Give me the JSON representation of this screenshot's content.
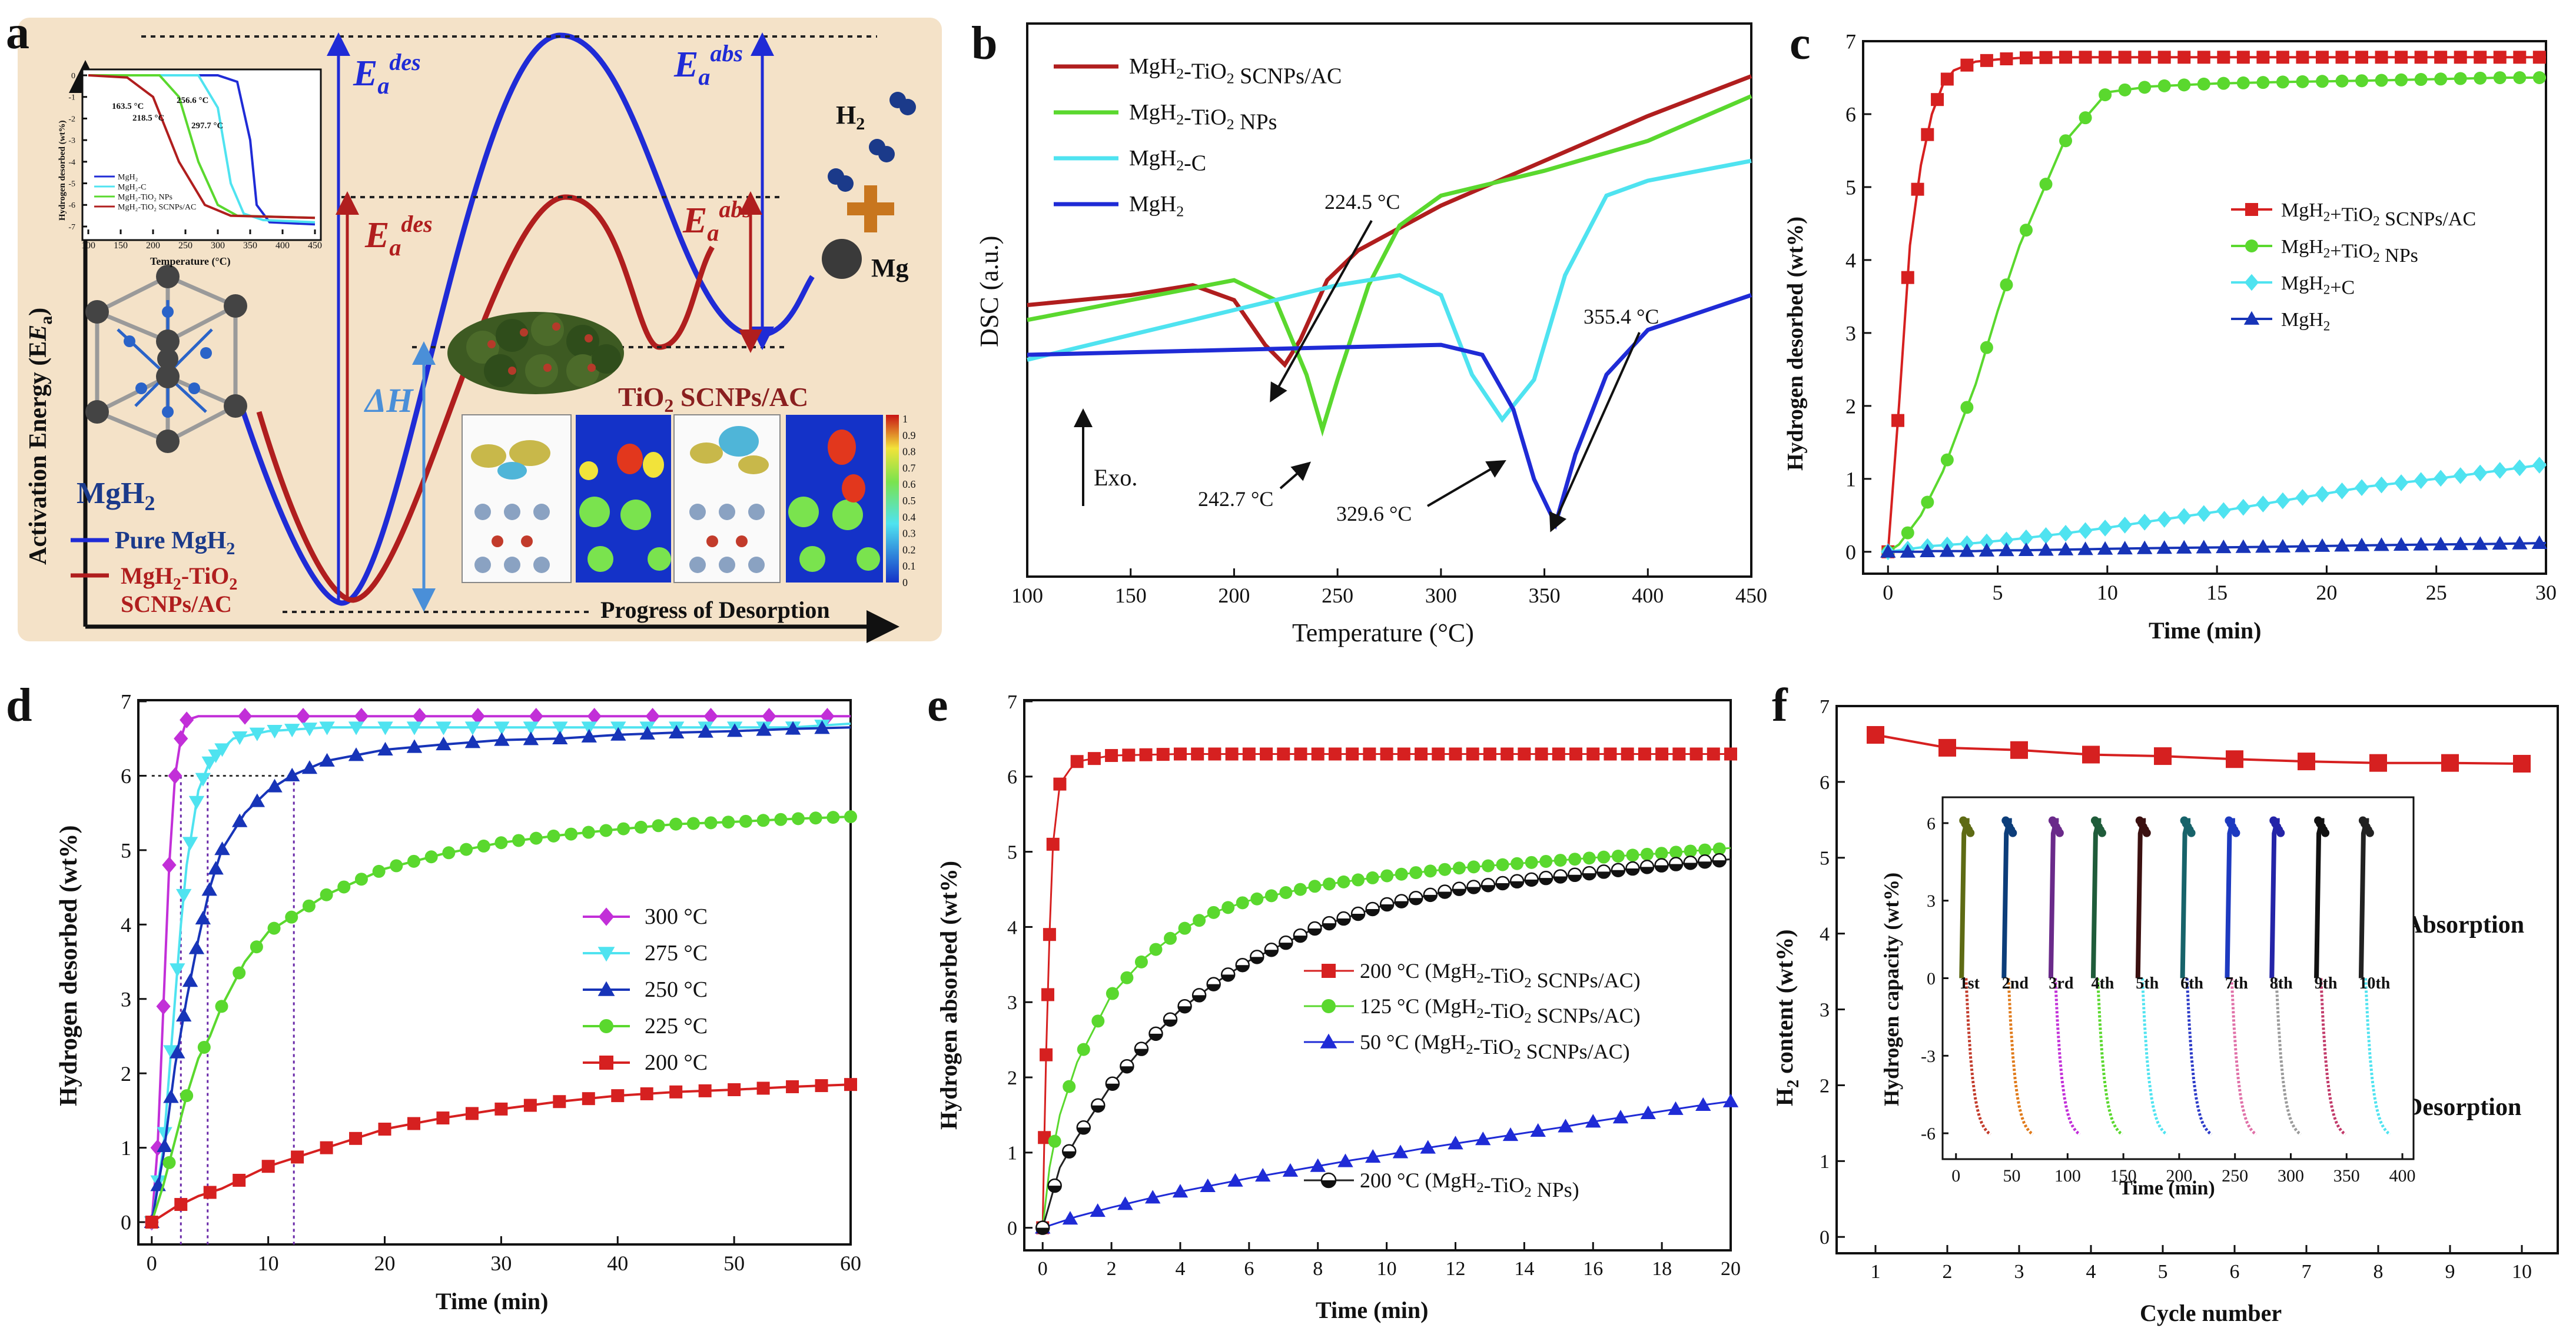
{
  "colors": {
    "dark_red": "#b01e1e",
    "red": "#d62020",
    "green": "#5ad82e",
    "cyan": "#4fe3f0",
    "blue": "#1f2bd6",
    "magenta": "#c22fd8",
    "blue_dark": "#1734b8",
    "black": "#222222",
    "orange_plus": "#c8761e",
    "panel_a_bg": "#f3dfc4",
    "mg_grey": "#555555",
    "h2_blue": "#1b3a8a"
  },
  "panel_a": {
    "letter": "a",
    "ylabel": "Activation Energy (E",
    "ylabel_sub": "a",
    "ylabel_end": ")",
    "xlabel": "Progress of Desorption",
    "ea_des_blue": "E",
    "ea_des_sub": "a",
    "ea_des_sup": "des",
    "ea_abs_sub": "a",
    "ea_abs_sup": "abs",
    "delta_h": "ΔH",
    "h2": "H",
    "h2_sub": "2",
    "mg": "Mg",
    "mgh2": "MgH",
    "mgh2_sub": "2",
    "tio2_label": "TiO",
    "tio2_sub": "2",
    "tio2_end": " SCNPs/AC",
    "legend_pure": "Pure MgH",
    "legend_pure_sub": "2",
    "legend_comp_1": "MgH",
    "legend_comp_sub": "2",
    "legend_comp_2": "-TiO",
    "legend_comp_sub2": "2",
    "legend_comp_3": "SCNPs/AC",
    "cbar_ticks": [
      "1",
      "0.9",
      "0.8",
      "0.7",
      "0.6",
      "0.5",
      "0.4",
      "0.3",
      "0.2",
      "0.1",
      "0"
    ],
    "inset": {
      "ylabel": "Hydrogen desorbed (wt%)",
      "xlabel": "Temperature (°C)",
      "xticks": [
        "100",
        "150",
        "200",
        "250",
        "300",
        "350",
        "400",
        "450"
      ],
      "yticks": [
        "0",
        "-1",
        "-2",
        "-3",
        "-4",
        "-5",
        "-6",
        "-7"
      ],
      "annotations": [
        "163.5 °C",
        "218.5 °C",
        "256.6 °C",
        "297.7 °C"
      ],
      "legend": [
        "MgH₂",
        "MgH₂-C",
        "MgH₂-TiO₂ NPs",
        "MgH₂-TiO₂ SCNPs/AC"
      ]
    }
  },
  "panel_b": {
    "letter": "b",
    "ylabel": "DSC (a.u.)",
    "xlabel": "Temperature (°C)",
    "exo": "Exo.",
    "legend": [
      {
        "pre": "MgH",
        "sub": "2",
        "post": "-TiO",
        "sub2": "2",
        "post2": " SCNPs/AC"
      },
      {
        "pre": "MgH",
        "sub": "2",
        "post": "-TiO",
        "sub2": "2",
        "post2": " NPs"
      },
      {
        "pre": "MgH",
        "sub": "2",
        "post": "-C",
        "sub2": "",
        "post2": ""
      },
      {
        "pre": "MgH",
        "sub": "2",
        "post": "",
        "sub2": "",
        "post2": ""
      }
    ],
    "annotations": [
      "224.5 °C",
      "242.7 °C",
      "329.6 °C",
      "355.4 °C"
    ]
  },
  "panel_c": {
    "letter": "c",
    "ylabel": "Hydrogen desorbed (wt%)",
    "xlabel": "Time (min)",
    "legend": [
      {
        "pre": "MgH",
        "sub": "2",
        "post": "+TiO",
        "sub2": "2",
        "post2": " SCNPs/AC"
      },
      {
        "pre": "MgH",
        "sub": "2",
        "post": "+TiO",
        "sub2": "2",
        "post2": " NPs"
      },
      {
        "pre": "MgH",
        "sub": "2",
        "post": "+C",
        "sub2": "",
        "post2": ""
      },
      {
        "pre": "MgH",
        "sub": "2",
        "post": "",
        "sub2": "",
        "post2": ""
      }
    ]
  },
  "panel_d": {
    "letter": "d",
    "ylabel": "Hydrogen desorbed (wt%)",
    "xlabel": "Time (min)",
    "legend": [
      "300 °C",
      "275 °C",
      "250 °C",
      "225 °C",
      "200 °C"
    ]
  },
  "panel_e": {
    "letter": "e",
    "ylabel": "Hydrogen absorbed (wt%)",
    "xlabel": "Time (min)",
    "legend": [
      {
        "pre": "200 °C (MgH",
        "sub": "2",
        "post": "-TiO",
        "sub2": "2",
        "post2": " SCNPs/AC)"
      },
      {
        "pre": "125 °C (MgH",
        "sub": "2",
        "post": "-TiO",
        "sub2": "2",
        "post2": " SCNPs/AC)"
      },
      {
        "pre": "50 °C (MgH",
        "sub": "2",
        "post": "-TiO",
        "sub2": "2",
        "post2": " SCNPs/AC)"
      },
      {
        "pre": "200 °C (MgH",
        "sub": "2",
        "post": "-TiO",
        "sub2": "2",
        "post2": " NPs)"
      }
    ]
  },
  "panel_f": {
    "letter": "f",
    "ylabel_pre": "H",
    "ylabel_sub": "2",
    "ylabel_post": " content (wt%)",
    "xlabel": "Cycle number",
    "absorption": "Absorption",
    "desorption": "Desorption",
    "inset": {
      "ylabel": "Hydrogen capacity (wt%)",
      "xlabel": "Time (min)",
      "xticks": [
        "0",
        "50",
        "100",
        "150",
        "200",
        "250",
        "300",
        "350",
        "400"
      ],
      "yticks": [
        "6",
        "3",
        "0",
        "-3",
        "-6"
      ],
      "cycle_labels": [
        "1st",
        "2nd",
        "3rd",
        "4th",
        "5th",
        "6th",
        "7th",
        "8th",
        "9th",
        "10th"
      ]
    }
  },
  "chart_data": [
    {
      "panel": "a-inset",
      "type": "line",
      "xlabel": "Temperature (°C)",
      "ylabel": "Hydrogen desorbed (wt%)",
      "xlim": [
        100,
        450
      ],
      "ylim": [
        -7,
        0
      ],
      "series": [
        {
          "name": "MgH₂",
          "x": [
            100,
            300,
            330,
            350,
            360,
            380,
            450
          ],
          "y": [
            0,
            0,
            -0.3,
            -3,
            -6,
            -6.8,
            -6.9
          ]
        },
        {
          "name": "MgH₂-C",
          "x": [
            100,
            270,
            300,
            320,
            340,
            370,
            450
          ],
          "y": [
            0,
            0,
            -1.5,
            -5,
            -6.4,
            -6.7,
            -6.8
          ]
        },
        {
          "name": "MgH₂-TiO₂ NPs",
          "x": [
            100,
            210,
            240,
            270,
            300,
            330,
            450
          ],
          "y": [
            0,
            0,
            -1,
            -4,
            -6,
            -6.5,
            -6.6
          ]
        },
        {
          "name": "MgH₂-TiO₂ SCNPs/AC",
          "x": [
            100,
            160,
            200,
            240,
            280,
            320,
            450
          ],
          "y": [
            0,
            -0.1,
            -1,
            -4,
            -6,
            -6.5,
            -6.6
          ]
        }
      ]
    },
    {
      "panel": "b",
      "type": "line",
      "xlabel": "Temperature (°C)",
      "ylabel": "DSC (a.u.)",
      "xlim": [
        100,
        450
      ],
      "series": [
        {
          "name": "MgH₂-TiO₂ SCNPs/AC",
          "x": [
            100,
            150,
            180,
            200,
            215,
            224.5,
            232,
            245,
            260,
            300,
            350,
            400,
            450
          ],
          "y": [
            5.4,
            5.6,
            5.8,
            5.5,
            4.6,
            4.2,
            4.7,
            5.9,
            6.5,
            7.4,
            8.3,
            9.2,
            10.0
          ]
        },
        {
          "name": "MgH₂-TiO₂ NPs",
          "x": [
            100,
            150,
            200,
            220,
            235,
            242.7,
            250,
            265,
            280,
            300,
            350,
            400,
            450
          ],
          "y": [
            5.1,
            5.5,
            5.9,
            5.5,
            4.0,
            2.9,
            3.9,
            5.8,
            7.0,
            7.6,
            8.1,
            8.7,
            9.6
          ]
        },
        {
          "name": "MgH₂-C",
          "x": [
            100,
            150,
            200,
            250,
            280,
            300,
            315,
            329.6,
            345,
            360,
            380,
            400,
            450
          ],
          "y": [
            4.3,
            4.8,
            5.3,
            5.8,
            6.0,
            5.6,
            4.0,
            3.1,
            3.9,
            6.0,
            7.6,
            7.9,
            8.3
          ]
        },
        {
          "name": "MgH₂",
          "x": [
            100,
            150,
            200,
            250,
            300,
            320,
            335,
            345,
            355.4,
            365,
            380,
            400,
            450
          ],
          "y": [
            4.4,
            4.45,
            4.5,
            4.55,
            4.6,
            4.4,
            3.3,
            1.9,
            1.0,
            2.4,
            4.0,
            4.9,
            5.6
          ]
        }
      ]
    },
    {
      "panel": "c",
      "type": "line",
      "xlabel": "Time (min)",
      "ylabel": "Hydrogen desorbed (wt%)",
      "xlim": [
        -1,
        30
      ],
      "ylim": [
        -0.3,
        7
      ],
      "x": [
        0,
        0.5,
        1,
        1.5,
        2,
        2.5,
        3,
        4,
        5,
        6,
        8,
        10,
        12,
        15,
        18,
        20,
        22,
        25,
        28,
        30
      ],
      "series": [
        {
          "name": "MgH₂+TiO₂ SCNPs/AC",
          "y": [
            0,
            2.0,
            4.2,
            5.3,
            6.0,
            6.4,
            6.6,
            6.72,
            6.75,
            6.77,
            6.78,
            6.78,
            6.78,
            6.78,
            6.78,
            6.78,
            6.78,
            6.78,
            6.78,
            6.78
          ]
        },
        {
          "name": "MgH₂+TiO₂ NPs",
          "y": [
            0,
            0.1,
            0.3,
            0.5,
            0.8,
            1.1,
            1.5,
            2.3,
            3.3,
            4.2,
            5.6,
            6.3,
            6.38,
            6.42,
            6.44,
            6.45,
            6.46,
            6.48,
            6.5,
            6.5
          ]
        },
        {
          "name": "MgH₂+C",
          "y": [
            0,
            0.02,
            0.04,
            0.06,
            0.08,
            0.09,
            0.1,
            0.12,
            0.15,
            0.18,
            0.25,
            0.33,
            0.42,
            0.55,
            0.7,
            0.8,
            0.9,
            1.0,
            1.12,
            1.2
          ]
        },
        {
          "name": "MgH₂",
          "y": [
            0,
            0,
            0,
            0,
            0.01,
            0.01,
            0.01,
            0.01,
            0.02,
            0.02,
            0.03,
            0.04,
            0.05,
            0.06,
            0.07,
            0.08,
            0.09,
            0.1,
            0.11,
            0.12
          ]
        }
      ]
    },
    {
      "panel": "d",
      "type": "line",
      "xlabel": "Time (min)",
      "ylabel": "Hydrogen desorbed (wt%)",
      "xlim": [
        -1,
        60
      ],
      "ylim": [
        -0.3,
        7
      ],
      "series": [
        {
          "name": "300 °C",
          "x": [
            0,
            0.5,
            1,
            1.5,
            2,
            2.5,
            3,
            4,
            5,
            7,
            10,
            15,
            20,
            25,
            30,
            35,
            40,
            45,
            50,
            55,
            60
          ],
          "y": [
            0,
            1.0,
            2.9,
            4.8,
            6.0,
            6.5,
            6.75,
            6.8,
            6.8,
            6.8,
            6.8,
            6.8,
            6.8,
            6.8,
            6.8,
            6.8,
            6.8,
            6.8,
            6.8,
            6.8,
            6.8
          ]
        },
        {
          "name": "275 °C",
          "x": [
            0,
            0.5,
            1,
            1.5,
            2,
            2.5,
            3,
            4,
            5,
            7,
            10,
            15,
            20,
            25,
            30,
            35,
            40,
            45,
            50,
            55,
            60
          ],
          "y": [
            0,
            0.5,
            1.0,
            2.0,
            3.0,
            4.0,
            4.8,
            5.8,
            6.2,
            6.5,
            6.6,
            6.65,
            6.65,
            6.65,
            6.65,
            6.65,
            6.65,
            6.65,
            6.65,
            6.65,
            6.7
          ]
        },
        {
          "name": "250 °C",
          "x": [
            0,
            1,
            2,
            3,
            4,
            5,
            6,
            8,
            10,
            12,
            15,
            20,
            25,
            30,
            35,
            40,
            45,
            50,
            55,
            60
          ],
          "y": [
            0,
            0.9,
            2.1,
            3.0,
            3.8,
            4.5,
            5.0,
            5.5,
            5.8,
            6.0,
            6.2,
            6.35,
            6.42,
            6.48,
            6.5,
            6.55,
            6.58,
            6.6,
            6.63,
            6.65
          ]
        },
        {
          "name": "225 °C",
          "x": [
            0,
            1,
            2,
            3,
            4,
            5,
            6,
            8,
            10,
            12,
            15,
            20,
            25,
            30,
            35,
            40,
            45,
            50,
            55,
            60
          ],
          "y": [
            0,
            0.5,
            1.1,
            1.7,
            2.2,
            2.5,
            2.9,
            3.5,
            3.9,
            4.1,
            4.4,
            4.75,
            4.95,
            5.1,
            5.2,
            5.28,
            5.35,
            5.38,
            5.42,
            5.45
          ]
        },
        {
          "name": "200 °C",
          "x": [
            0,
            2,
            4,
            6,
            8,
            10,
            12,
            15,
            20,
            25,
            30,
            35,
            40,
            45,
            50,
            55,
            60
          ],
          "y": [
            0,
            0.2,
            0.35,
            0.45,
            0.6,
            0.75,
            0.85,
            1.0,
            1.25,
            1.4,
            1.52,
            1.62,
            1.7,
            1.75,
            1.78,
            1.82,
            1.85
          ]
        }
      ]
    },
    {
      "panel": "e",
      "type": "line",
      "xlabel": "Time (min)",
      "ylabel": "Hydrogen absorbed (wt%)",
      "xlim": [
        -0.5,
        20
      ],
      "ylim": [
        -0.3,
        7
      ],
      "series": [
        {
          "name": "200 °C (MgH₂-TiO₂ SCNPs/AC)",
          "x": [
            0,
            0.05,
            0.1,
            0.15,
            0.2,
            0.3,
            0.5,
            0.8,
            1,
            2,
            4,
            6,
            8,
            10,
            12,
            14,
            16,
            18,
            20
          ],
          "y": [
            0,
            1.2,
            2.3,
            3.1,
            3.9,
            5.1,
            5.9,
            6.1,
            6.2,
            6.28,
            6.3,
            6.3,
            6.3,
            6.3,
            6.3,
            6.3,
            6.3,
            6.3,
            6.3
          ]
        },
        {
          "name": "125 °C (MgH₂-TiO₂ SCNPs/AC)",
          "x": [
            0,
            0.2,
            0.5,
            1,
            2,
            3,
            4,
            5,
            6,
            8,
            10,
            12,
            14,
            16,
            18,
            20
          ],
          "y": [
            0,
            0.8,
            1.5,
            2.2,
            3.1,
            3.6,
            3.95,
            4.2,
            4.35,
            4.55,
            4.68,
            4.78,
            4.85,
            4.92,
            4.98,
            5.05
          ]
        },
        {
          "name": "50 °C (MgH₂-TiO₂ SCNPs/AC)",
          "x": [
            0,
            1,
            2,
            3,
            4,
            5,
            6,
            7,
            8,
            9,
            10,
            11,
            12,
            13,
            14,
            15,
            16,
            17,
            18,
            19,
            20
          ],
          "y": [
            0,
            0.15,
            0.27,
            0.38,
            0.48,
            0.57,
            0.66,
            0.74,
            0.82,
            0.9,
            0.97,
            1.05,
            1.12,
            1.19,
            1.26,
            1.33,
            1.41,
            1.48,
            1.55,
            1.62,
            1.68
          ]
        },
        {
          "name": "200 °C (MgH₂-TiO₂ NPs)",
          "x": [
            0,
            0.5,
            1,
            2,
            3,
            4,
            5,
            6,
            8,
            10,
            12,
            14,
            16,
            18,
            20
          ],
          "y": [
            0,
            0.8,
            1.2,
            1.9,
            2.45,
            2.9,
            3.25,
            3.55,
            4.0,
            4.3,
            4.5,
            4.62,
            4.72,
            4.82,
            4.9
          ]
        }
      ]
    },
    {
      "panel": "f",
      "type": "line",
      "xlabel": "Cycle number",
      "ylabel": "H₂ content (wt%)",
      "xlim": [
        0.5,
        10.5
      ],
      "ylim": [
        -0.2,
        7
      ],
      "x": [
        1,
        2,
        3,
        4,
        5,
        6,
        7,
        8,
        9,
        10
      ],
      "series": [
        {
          "name": "",
          "y": [
            6.62,
            6.45,
            6.42,
            6.36,
            6.34,
            6.3,
            6.27,
            6.25,
            6.25,
            6.24
          ]
        }
      ]
    }
  ]
}
